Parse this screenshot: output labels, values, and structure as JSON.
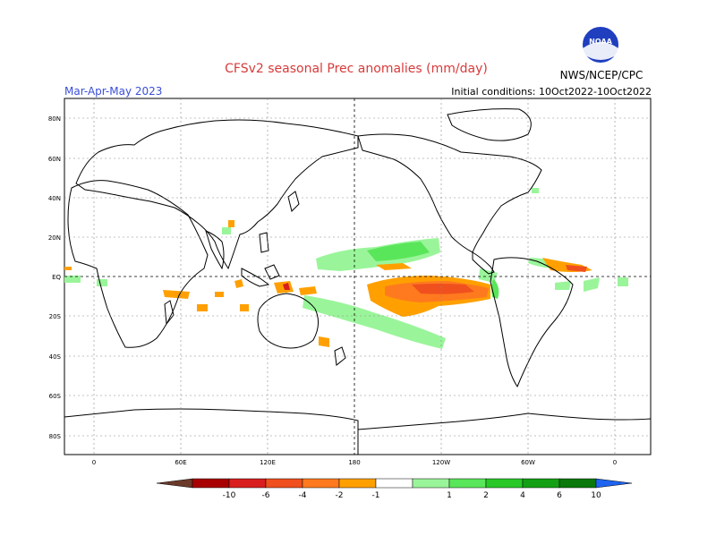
{
  "header": {
    "title": "CFSv2 seasonal Prec anomalies (mm/day)",
    "season": "Mar-Apr-May 2023",
    "init": "Initial conditions: 10Oct2022-10Oct2022",
    "agency": "NWS/NCEP/CPC",
    "logo_text": "NOAA"
  },
  "colors": {
    "title": "#d83a3a",
    "season": "#3a4fd8",
    "border": "#000000",
    "grid": "#888888"
  },
  "map": {
    "lat_labels": [
      "80N",
      "60N",
      "40N",
      "20N",
      "EQ",
      "20S",
      "40S",
      "60S",
      "80S"
    ],
    "lon_labels": [
      "0",
      "60E",
      "120E",
      "180",
      "120W",
      "60W",
      "0"
    ]
  },
  "legend": {
    "labels": [
      "-10",
      "-6",
      "-4",
      "-2",
      "-1",
      "1",
      "2",
      "4",
      "6",
      "10"
    ],
    "colors": [
      "#6b3a2a",
      "#a80000",
      "#d81e1e",
      "#f0501e",
      "#ff7a1e",
      "#ffa000",
      "#ffffff",
      "#9af59a",
      "#5ae65a",
      "#28c828",
      "#14a014",
      "#0a780a",
      "#1e64f0"
    ]
  }
}
